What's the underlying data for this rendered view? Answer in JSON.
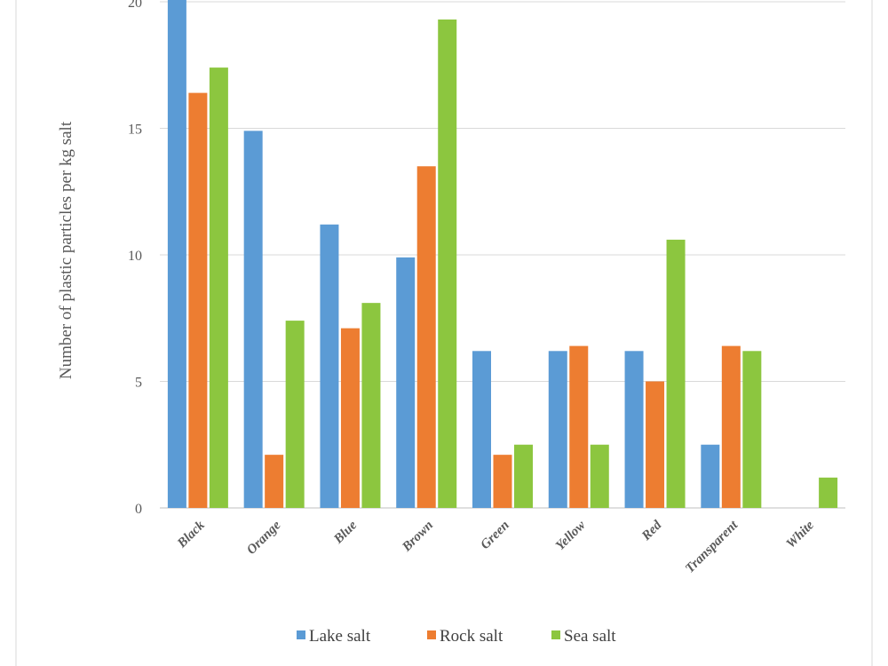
{
  "chart_data": {
    "type": "bar",
    "title": "",
    "xlabel": "",
    "ylabel": "Number of plastic particles per kg salt",
    "ylim": [
      0,
      20
    ],
    "yticks": [
      0,
      5,
      10,
      15,
      20
    ],
    "grid": true,
    "legend_position": "bottom",
    "categories": [
      "Black",
      "Orange",
      "Blue",
      "Brown",
      "Green",
      "Yellow",
      "Red",
      "Transparent",
      "White"
    ],
    "series": [
      {
        "name": "Lake salt",
        "color": "#5B9BD5",
        "values": [
          20.1,
          14.9,
          11.2,
          9.9,
          6.2,
          6.2,
          6.2,
          2.5,
          0
        ]
      },
      {
        "name": "Rock salt",
        "color": "#ED7D31",
        "values": [
          16.4,
          2.1,
          7.1,
          13.5,
          2.1,
          6.4,
          5.0,
          6.4,
          0
        ]
      },
      {
        "name": "Sea salt",
        "color": "#8CC63F",
        "values": [
          17.4,
          7.4,
          8.1,
          19.3,
          2.5,
          2.5,
          10.6,
          6.2,
          1.2
        ]
      }
    ]
  }
}
